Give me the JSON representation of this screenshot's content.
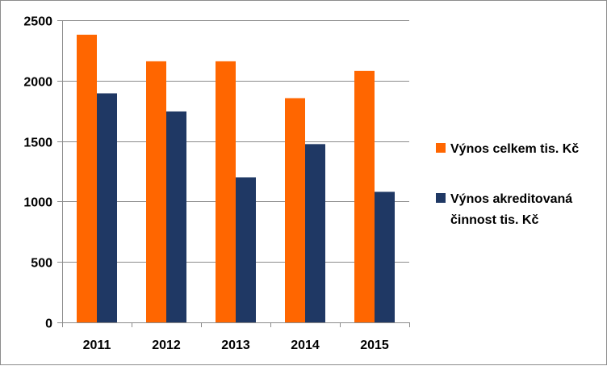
{
  "chart_data": {
    "type": "bar",
    "title": "",
    "xlabel": "",
    "ylabel": "",
    "categories": [
      "2011",
      "2012",
      "2013",
      "2014",
      "2015"
    ],
    "series": [
      {
        "name": "Výnos celkem tis. Kč",
        "legend_lines": [
          "Výnos celkem tis. Kč"
        ],
        "color": "#ff6600",
        "values": [
          2380,
          2160,
          2160,
          1855,
          2080
        ]
      },
      {
        "name": "Výnos akreditovaná činnost tis. Kč",
        "legend_lines": [
          "Výnos akreditovaná",
          "činnost tis. Kč"
        ],
        "color": "#1f3864",
        "values": [
          1895,
          1745,
          1200,
          1475,
          1080
        ]
      }
    ],
    "ylim": [
      0,
      2500
    ],
    "yticks": [
      "0",
      "500",
      "1000",
      "1500",
      "2000",
      "2500"
    ],
    "grid": true,
    "legend_position": "right"
  }
}
